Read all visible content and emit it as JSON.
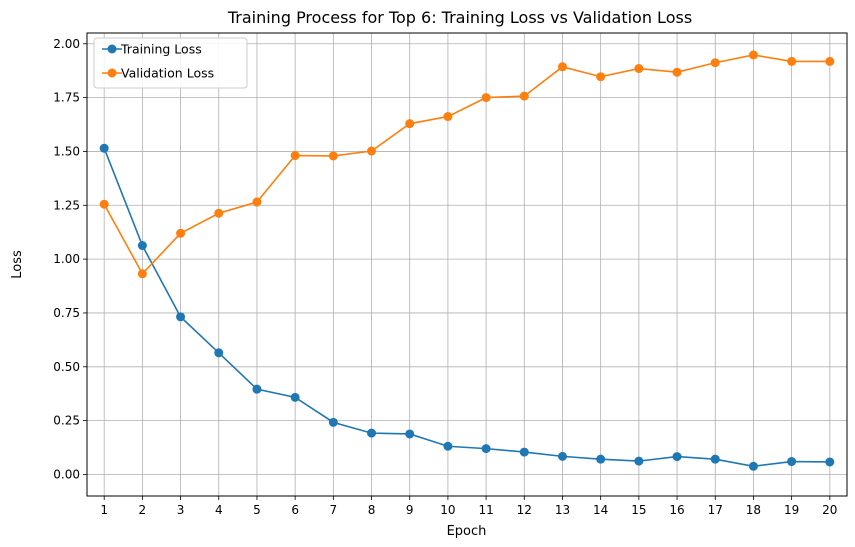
{
  "chart_data": {
    "type": "line",
    "title": "Training Process for Top 6: Training Loss vs Validation Loss",
    "xlabel": "Epoch",
    "ylabel": "Loss",
    "x": [
      1,
      2,
      3,
      4,
      5,
      6,
      7,
      8,
      9,
      10,
      11,
      12,
      13,
      14,
      15,
      16,
      17,
      18,
      19,
      20
    ],
    "xlim": [
      0.55,
      20.45
    ],
    "ylim": [
      -0.1,
      2.05
    ],
    "yticks": [
      0.0,
      0.25,
      0.5,
      0.75,
      1.0,
      1.25,
      1.5,
      1.75,
      2.0
    ],
    "ytick_labels": [
      "0.00",
      "0.25",
      "0.50",
      "0.75",
      "1.00",
      "1.25",
      "1.50",
      "1.75",
      "2.00"
    ],
    "grid": true,
    "legend_position": "upper-left",
    "series": [
      {
        "name": "Training Loss",
        "color": "#1f77b4",
        "marker": "circle",
        "values": [
          1.515,
          1.063,
          0.732,
          0.565,
          0.396,
          0.358,
          0.242,
          0.192,
          0.188,
          0.131,
          0.12,
          0.104,
          0.084,
          0.071,
          0.062,
          0.083,
          0.071,
          0.038,
          0.06,
          0.058
        ]
      },
      {
        "name": "Validation Loss",
        "color": "#ff7f0e",
        "marker": "circle",
        "values": [
          1.255,
          0.932,
          1.12,
          1.213,
          1.265,
          1.481,
          1.479,
          1.502,
          1.629,
          1.662,
          1.75,
          1.757,
          1.893,
          1.847,
          1.885,
          1.868,
          1.912,
          1.948,
          1.918,
          1.918
        ]
      }
    ]
  }
}
